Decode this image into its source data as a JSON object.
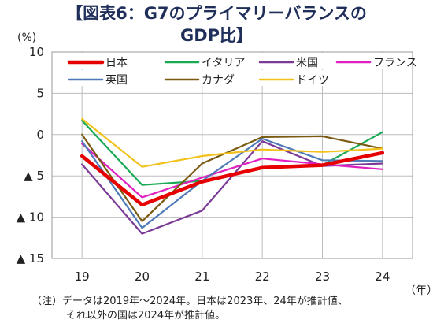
{
  "title_line1": "【図表6：G7のプライマリーバランスの",
  "title_line2": "GDP比】",
  "unit_label": "(%)",
  "x_unit_label": "（年）",
  "notes": [
    "（注）データは2019年～2024年。日本は2023年、24年が推計値、",
    "それ以外の国は2024年が推計値。"
  ],
  "chart_data": {
    "type": "line",
    "x": [
      19,
      20,
      21,
      22,
      23,
      24
    ],
    "x_tick_labels": [
      "19",
      "20",
      "21",
      "22",
      "23",
      "24"
    ],
    "ylim": [
      -15,
      10
    ],
    "y_ticks": [
      10,
      5,
      0,
      -5,
      -10,
      -15
    ],
    "y_tick_labels": [
      "10",
      "5",
      "0",
      "▲ 5",
      "▲ 10",
      "▲ 15"
    ],
    "grid": true,
    "legend_position": "top",
    "series": [
      {
        "name": "日本",
        "color": "#e60000",
        "width": 4.5,
        "values": [
          -2.6,
          -8.5,
          -5.7,
          -4.0,
          -3.7,
          -2.2
        ]
      },
      {
        "name": "イタリア",
        "color": "#1aaa55",
        "width": 2.2,
        "values": [
          1.7,
          -6.1,
          -5.6,
          -4.1,
          -3.7,
          0.3
        ]
      },
      {
        "name": "米国",
        "color": "#7b3a96",
        "width": 2.2,
        "values": [
          -3.6,
          -12.0,
          -9.2,
          -0.8,
          -3.8,
          -3.5
        ]
      },
      {
        "name": "フランス",
        "color": "#e020c0",
        "width": 2.2,
        "values": [
          -1.1,
          -7.6,
          -5.2,
          -2.9,
          -3.6,
          -4.2
        ]
      },
      {
        "name": "英国",
        "color": "#4f7ab8",
        "width": 2.2,
        "values": [
          -0.8,
          -11.3,
          -5.6,
          -0.5,
          -3.1,
          -3.2
        ]
      },
      {
        "name": "カナダ",
        "color": "#7a5a10",
        "width": 2.2,
        "values": [
          0.0,
          -10.5,
          -3.5,
          -0.3,
          -0.2,
          -1.7
        ]
      },
      {
        "name": "ドイツ",
        "color": "#f2c21b",
        "width": 2.2,
        "values": [
          1.9,
          -3.9,
          -2.6,
          -1.8,
          -2.1,
          -1.7
        ]
      }
    ]
  }
}
